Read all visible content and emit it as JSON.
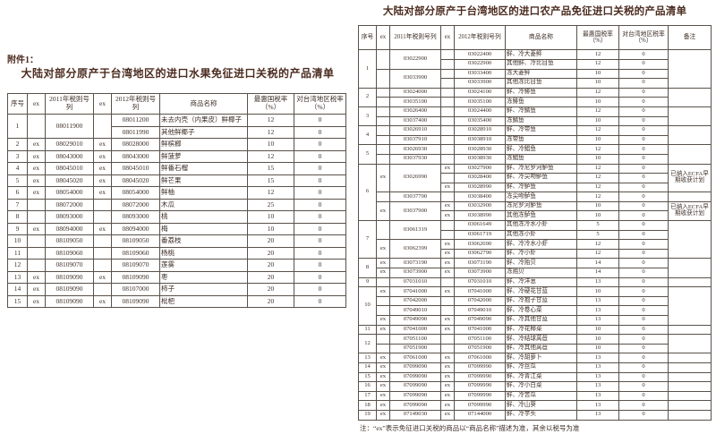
{
  "page": {
    "attachment_label": "附件1：",
    "left_title": "大陆对部分原产于台湾地区的进口水果免征进口关税的产品清单",
    "right_title": "大陆对部分原产于台湾地区的进口农产品免征进口关税的产品清单",
    "footnote": "注：“ex”表示免征进口关税的商品以“商品名称”描述为准，其余以税号为准"
  },
  "colors": {
    "ink": "#3e2f27",
    "title_ink": "#4c2c20",
    "table_border": "#5a5149",
    "page_bg": "#ffffff"
  },
  "fruit_table": {
    "headers": [
      "序号",
      "ex",
      "2011年税则号列",
      "ex",
      "2012年税则号列",
      "商品名称",
      "最惠国税率（%）",
      "对台湾地区税率（%）"
    ],
    "rows": [
      [
        {
          "v": "1",
          "rs": 2
        },
        {
          "v": "",
          "rs": 2
        },
        {
          "v": "08011900",
          "rs": 2
        },
        {
          "v": "",
          "rs": 2
        },
        "08011200",
        "未去内壳（内果皮）鲜椰子",
        "12",
        "0"
      ],
      [
        "08011990",
        "其他鲜椰子",
        "12",
        "0"
      ],
      [
        "2",
        "ex",
        "08029010",
        "ex",
        "08028000",
        "鲜槟榔",
        "10",
        "0"
      ],
      [
        "3",
        "ex",
        "08043000",
        "ex",
        "08043000",
        "鲜菠萝",
        "12",
        "0"
      ],
      [
        "4",
        "ex",
        "08045010",
        "ex",
        "08045010",
        "鲜番石榴",
        "15",
        "0"
      ],
      [
        "5",
        "ex",
        "08045020",
        "ex",
        "08045020",
        "鲜芒果",
        "15",
        "0"
      ],
      [
        "6",
        "ex",
        "08054000",
        "ex",
        "08054000",
        "鲜柚",
        "12",
        "0"
      ],
      [
        "7",
        "",
        "08072000",
        "",
        "08072000",
        "木瓜",
        "25",
        "0"
      ],
      [
        "8",
        "",
        "08093000",
        "",
        "08093000",
        "桃",
        "10",
        "0"
      ],
      [
        "9",
        "ex",
        "08094000",
        "ex",
        "08094000",
        "梅",
        "10",
        "0"
      ],
      [
        "10",
        "",
        "08109050",
        "",
        "08109050",
        "番荔枝",
        "20",
        "0"
      ],
      [
        "11",
        "",
        "08109060",
        "",
        "08109060",
        "杨桃",
        "20",
        "0"
      ],
      [
        "12",
        "",
        "08109070",
        "",
        "08109070",
        "莲雾",
        "20",
        "0"
      ],
      [
        "13",
        "ex",
        "08109090",
        "ex",
        "08109090",
        "枣",
        "20",
        "0"
      ],
      [
        "14",
        "ex",
        "08109090",
        "",
        "08107000",
        "柿子",
        "20",
        "0"
      ],
      [
        "15",
        "ex",
        "08109090",
        "ex",
        "08109090",
        "枇杷",
        "20",
        "0"
      ]
    ]
  },
  "agri_table": {
    "headers": [
      "序号",
      "ex",
      "2011年税则号列",
      "ex",
      "2012年税则号列",
      "商品名称",
      "最惠国税率（%）",
      "对台湾地区税率（%）",
      "备注"
    ],
    "rows": [
      [
        {
          "v": "1",
          "rs": 4
        },
        {
          "v": "",
          "rs": 2
        },
        {
          "v": "03022900",
          "rs": 2
        },
        "",
        "03022400",
        "鲜、冷大菱鲆",
        "12",
        "0",
        {
          "v": "",
          "rs": 4
        }
      ],
      [
        "",
        "03022900",
        "其他鲜、冷比目鱼",
        "12",
        "0"
      ],
      [
        {
          "v": "",
          "rs": 2
        },
        {
          "v": "03033900",
          "rs": 2
        },
        "",
        "03033400",
        "冻大菱鲆",
        "10",
        "0"
      ],
      [
        "",
        "03033900",
        "其他冻比目鱼",
        "10",
        "0"
      ],
      [
        {
          "v": "2",
          "rs": 2
        },
        "",
        "03024000",
        "",
        "03024100",
        "鲜、冷鲱鱼",
        "12",
        "0",
        {
          "v": "",
          "rs": 2
        }
      ],
      [
        "",
        "03035100",
        "",
        "03035100",
        "冻鲱鱼",
        "10",
        "0"
      ],
      [
        {
          "v": "3",
          "rs": 2
        },
        "",
        "03026400",
        "",
        "03024400",
        "鲜、冷鲭鱼",
        "12",
        "0",
        {
          "v": "",
          "rs": 2
        }
      ],
      [
        "",
        "03037400",
        "",
        "03035400",
        "冻鲭鱼",
        "10",
        "0"
      ],
      [
        {
          "v": "4",
          "rs": 2
        },
        "",
        "03026910",
        "",
        "03028910",
        "鲜、冷带鱼",
        "12",
        "0",
        {
          "v": "",
          "rs": 2
        }
      ],
      [
        "",
        "03037910",
        "",
        "03038910",
        "冻带鱼",
        "10",
        "0"
      ],
      [
        {
          "v": "5",
          "rs": 2
        },
        "",
        "03026930",
        "",
        "03028930",
        "鲜、冷鲳鱼",
        "12",
        "0",
        {
          "v": "",
          "rs": 2
        }
      ],
      [
        "",
        "03037930",
        "",
        "03038930",
        "冻鲳鱼",
        "10",
        "0"
      ],
      [
        {
          "v": "6",
          "rs": 6
        },
        {
          "v": "ex",
          "rs": 3
        },
        {
          "v": "03026990",
          "rs": 3
        },
        "ex",
        "03027900",
        "鲜、冷尼罗河鲈鱼",
        "12",
        "0",
        {
          "v": "已纳入ECFA早期收获计划",
          "rs": 3
        }
      ],
      [
        "",
        "03028400",
        "鲜、冷尖吻鲈鱼",
        "12",
        "0"
      ],
      [
        "ex",
        "03028990",
        "鲜、冷鲈鱼",
        "12",
        "0"
      ],
      [
        "",
        "03037700",
        "",
        "03038400",
        "冻尖吻鲈鱼",
        "12",
        "0",
        ""
      ],
      [
        {
          "v": "ex",
          "rs": 2
        },
        {
          "v": "03037900",
          "rs": 2
        },
        "ex",
        "03032900",
        "冻尼罗河鲈鱼",
        "10",
        "0",
        {
          "v": "已纳入ECFA早期收获计划",
          "rs": 2
        }
      ],
      [
        "ex",
        "03038990",
        "其他冻鲈鱼",
        "10",
        "0"
      ],
      [
        {
          "v": "7",
          "rs": 4
        },
        {
          "v": "",
          "rs": 2
        },
        {
          "v": "03061319",
          "rs": 2
        },
        "",
        "03061649",
        "其他冻冷水小虾",
        "5",
        "0",
        {
          "v": "",
          "rs": 4
        }
      ],
      [
        "",
        "03061719",
        "其他冻小虾",
        "5",
        "0"
      ],
      [
        {
          "v": "ex",
          "rs": 2
        },
        {
          "v": "03062399",
          "rs": 2
        },
        "ex",
        "03062690",
        "鲜、冷冷水小虾",
        "12",
        "0"
      ],
      [
        "ex",
        "03062790",
        "鲜、冷小虾",
        "12",
        "0"
      ],
      [
        {
          "v": "8",
          "rs": 2
        },
        "ex",
        "03073190",
        "ex",
        "03073190",
        "鲜、冷贻贝",
        "14",
        "0",
        {
          "v": "",
          "rs": 2
        }
      ],
      [
        "ex",
        "03073900",
        "ex",
        "03073900",
        "冻贻贝",
        "14",
        "0"
      ],
      [
        "9",
        "",
        "07031010",
        "",
        "07031010",
        "鲜、冷洋葱",
        "13",
        "0",
        ""
      ],
      [
        {
          "v": "10",
          "rs": 4
        },
        "ex",
        "07041000",
        "ex",
        "07041000",
        "鲜、冷硬花甘蓝",
        "10",
        "0",
        {
          "v": "",
          "rs": 4
        }
      ],
      [
        "",
        "07042000",
        "",
        "07042000",
        "鲜、冷抱子甘蓝",
        "13",
        "0"
      ],
      [
        "",
        "07049010",
        "",
        "07049010",
        "鲜、冷卷心菜",
        "13",
        "0"
      ],
      [
        "ex",
        "07049090",
        "ex",
        "07049090",
        "鲜、冷其他甘蓝",
        "13",
        "0"
      ],
      [
        "11",
        "ex",
        "07041000",
        "ex",
        "07041000",
        "鲜、冷花椰菜",
        "10",
        "0",
        ""
      ],
      [
        {
          "v": "12",
          "rs": 2
        },
        "",
        "07051100",
        "",
        "07051100",
        "鲜、冷结球莴苣",
        "10",
        "0",
        {
          "v": "",
          "rs": 2
        }
      ],
      [
        "",
        "07051900",
        "",
        "07051900",
        "鲜、冷其他莴苣",
        "10",
        "0"
      ],
      [
        "13",
        "ex",
        "07061000",
        "ex",
        "07061000",
        "鲜、冷胡萝卜",
        "13",
        "0",
        ""
      ],
      [
        "14",
        "ex",
        "07099090",
        "ex",
        "07099990",
        "鲜、冷丝瓜",
        "13",
        "0",
        ""
      ],
      [
        "15",
        "ex",
        "07099090",
        "ex",
        "07099990",
        "鲜、冷青江菜",
        "13",
        "0",
        ""
      ],
      [
        "16",
        "ex",
        "07099090",
        "ex",
        "07099990",
        "鲜、冷小白菜",
        "13",
        "0",
        ""
      ],
      [
        "17",
        "ex",
        "07099090",
        "ex",
        "07099990",
        "鲜、冷苦瓜",
        "13",
        "0",
        ""
      ],
      [
        "18",
        "ex",
        "07099090",
        "ex",
        "07099990",
        "鲜、冷山葵",
        "13",
        "0",
        ""
      ],
      [
        "19",
        "ex",
        "07149030",
        "ex",
        "07144000",
        "鲜、冷芋头",
        "13",
        "0",
        ""
      ]
    ]
  }
}
